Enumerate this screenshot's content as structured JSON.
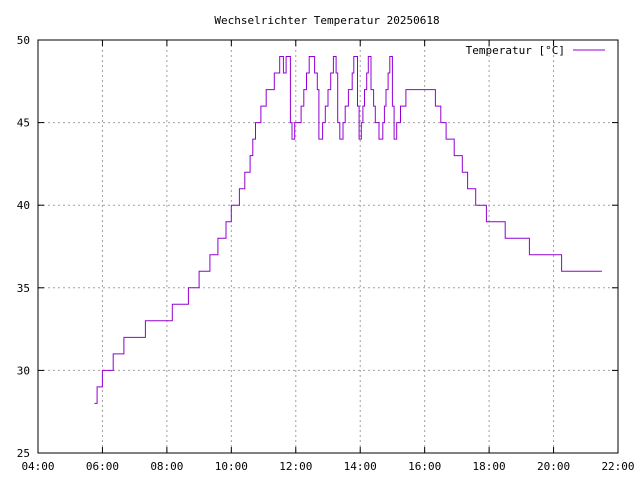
{
  "chart_data": {
    "type": "line",
    "title": "Wechselrichter Temperatur 20250618",
    "xlabel": "",
    "ylabel": "",
    "xlim": [
      "04:00",
      "22:00"
    ],
    "ylim": [
      25,
      50
    ],
    "x_ticks": [
      "04:00",
      "06:00",
      "08:00",
      "10:00",
      "12:00",
      "14:00",
      "16:00",
      "18:00",
      "20:00",
      "22:00"
    ],
    "y_ticks": [
      25,
      30,
      35,
      40,
      45,
      50
    ],
    "grid": true,
    "legend_position": "top-right",
    "series": [
      {
        "name": "Temperatur [°C]",
        "color": "#9400d3",
        "step": true,
        "points": [
          [
            "05:45",
            28
          ],
          [
            "05:50",
            29
          ],
          [
            "06:00",
            30
          ],
          [
            "06:20",
            31
          ],
          [
            "06:40",
            32
          ],
          [
            "07:20",
            33
          ],
          [
            "08:10",
            34
          ],
          [
            "08:40",
            35
          ],
          [
            "09:00",
            36
          ],
          [
            "09:20",
            37
          ],
          [
            "09:35",
            38
          ],
          [
            "09:50",
            39
          ],
          [
            "10:00",
            40
          ],
          [
            "10:15",
            41
          ],
          [
            "10:25",
            42
          ],
          [
            "10:35",
            43
          ],
          [
            "10:40",
            44
          ],
          [
            "10:45",
            45
          ],
          [
            "10:55",
            46
          ],
          [
            "11:05",
            47
          ],
          [
            "11:20",
            48
          ],
          [
            "11:30",
            49
          ],
          [
            "11:37",
            48
          ],
          [
            "11:42",
            49
          ],
          [
            "11:50",
            45
          ],
          [
            "11:53",
            44
          ],
          [
            "11:58",
            45
          ],
          [
            "12:10",
            46
          ],
          [
            "12:15",
            47
          ],
          [
            "12:20",
            48
          ],
          [
            "12:25",
            49
          ],
          [
            "12:35",
            48
          ],
          [
            "12:40",
            47
          ],
          [
            "12:43",
            44
          ],
          [
            "12:50",
            45
          ],
          [
            "12:55",
            46
          ],
          [
            "13:00",
            47
          ],
          [
            "13:05",
            48
          ],
          [
            "13:10",
            49
          ],
          [
            "13:15",
            48
          ],
          [
            "13:18",
            45
          ],
          [
            "13:22",
            44
          ],
          [
            "13:28",
            45
          ],
          [
            "13:32",
            46
          ],
          [
            "13:38",
            47
          ],
          [
            "13:45",
            48
          ],
          [
            "13:48",
            49
          ],
          [
            "13:55",
            46
          ],
          [
            "13:58",
            44
          ],
          [
            "14:02",
            45
          ],
          [
            "14:05",
            46
          ],
          [
            "14:08",
            47
          ],
          [
            "14:12",
            48
          ],
          [
            "14:15",
            49
          ],
          [
            "14:20",
            47
          ],
          [
            "14:25",
            46
          ],
          [
            "14:28",
            45
          ],
          [
            "14:35",
            44
          ],
          [
            "14:42",
            45
          ],
          [
            "14:45",
            46
          ],
          [
            "14:48",
            47
          ],
          [
            "14:52",
            48
          ],
          [
            "14:55",
            49
          ],
          [
            "15:00",
            46
          ],
          [
            "15:03",
            44
          ],
          [
            "15:08",
            45
          ],
          [
            "15:15",
            46
          ],
          [
            "15:25",
            47
          ],
          [
            "16:20",
            46
          ],
          [
            "16:30",
            45
          ],
          [
            "16:40",
            44
          ],
          [
            "16:55",
            43
          ],
          [
            "17:10",
            42
          ],
          [
            "17:20",
            41
          ],
          [
            "17:35",
            40
          ],
          [
            "17:55",
            39
          ],
          [
            "18:30",
            38
          ],
          [
            "19:15",
            37
          ],
          [
            "20:15",
            36
          ],
          [
            "21:30",
            36
          ]
        ]
      }
    ]
  }
}
